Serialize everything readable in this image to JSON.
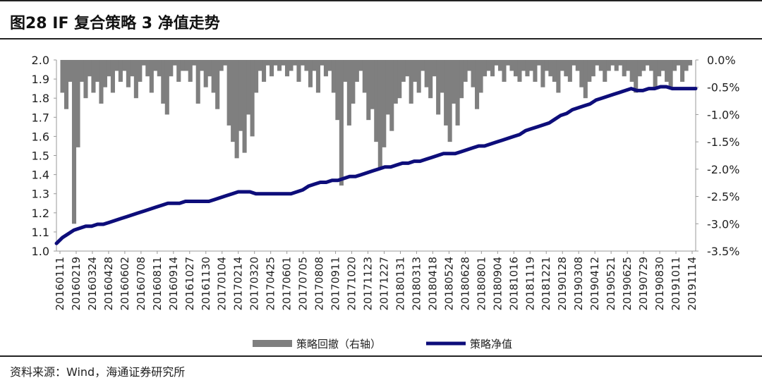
{
  "header": {
    "title": "图28 IF 复合策略 3 净值走势"
  },
  "footer": {
    "source": "资料来源：Wind，海通证券研究所"
  },
  "chart_data": {
    "type": "line",
    "title": "图28 IF 复合策略 3 净值走势",
    "x_ticks": [
      "20160111",
      "20160219",
      "20160324",
      "20160428",
      "20160602",
      "20160708",
      "20160811",
      "20160914",
      "20161027",
      "20161130",
      "20170104",
      "20170214",
      "20170320",
      "20170425",
      "20170601",
      "20170705",
      "20170808",
      "20170911",
      "20171020",
      "20171123",
      "20171227",
      "20180131",
      "20180313",
      "20180418",
      "20180524",
      "20180628",
      "20180801",
      "20180904",
      "20181016",
      "20181119",
      "20181221",
      "20190128",
      "20190308",
      "20190412",
      "20190521",
      "20190625",
      "20190729",
      "20190830",
      "20191011",
      "20191114"
    ],
    "y_left": {
      "ylim": [
        1.0,
        2.0
      ],
      "ticks": [
        "1.0",
        "1.1",
        "1.2",
        "1.3",
        "1.4",
        "1.5",
        "1.6",
        "1.7",
        "1.8",
        "1.9",
        "2.0"
      ]
    },
    "y_right": {
      "ylim": [
        -3.5,
        0.0
      ],
      "ticks": [
        "-3.5%",
        "-3.0%",
        "-2.5%",
        "-2.0%",
        "-1.5%",
        "-1.0%",
        "-0.5%",
        "0.0%"
      ]
    },
    "legend_position": "bottom",
    "series": [
      {
        "name": "策略回撤（右轴）",
        "type": "area",
        "axis": "right",
        "color": "#7f7f7f",
        "values": [
          0.0,
          -0.6,
          -0.9,
          -0.4,
          -3.0,
          -1.6,
          -0.4,
          -0.7,
          -0.3,
          -0.6,
          -0.4,
          -0.8,
          -0.5,
          -0.3,
          -0.6,
          -0.2,
          -0.4,
          -0.2,
          -0.5,
          -0.3,
          -0.7,
          -0.4,
          -0.1,
          -0.3,
          -0.6,
          -0.2,
          -0.3,
          -0.8,
          -1.0,
          -0.3,
          -0.1,
          -0.4,
          -0.2,
          -0.2,
          -0.4,
          -0.1,
          -0.8,
          -0.2,
          -0.5,
          -0.3,
          -0.6,
          -0.9,
          -0.2,
          -0.1,
          -1.2,
          -1.5,
          -1.8,
          -1.3,
          -1.7,
          -1.0,
          -1.4,
          -0.6,
          -0.2,
          -0.4,
          -0.1,
          -0.3,
          -0.1,
          -0.2,
          -0.1,
          -0.3,
          -0.2,
          -0.1,
          -0.4,
          -0.1,
          -0.2,
          -0.5,
          -0.2,
          -0.6,
          -0.1,
          -0.3,
          -0.2,
          -0.6,
          -1.1,
          -2.3,
          -0.4,
          -1.2,
          -0.8,
          -0.4,
          -0.2,
          -0.6,
          -1.1,
          -0.9,
          -1.5,
          -2.0,
          -1.6,
          -1.0,
          -1.3,
          -0.8,
          -0.7,
          -0.4,
          -0.3,
          -0.8,
          -0.4,
          -0.6,
          -0.2,
          -0.5,
          -0.7,
          -0.3,
          -1.0,
          -0.6,
          -1.2,
          -1.5,
          -0.8,
          -1.2,
          -0.7,
          -0.4,
          -0.2,
          -0.5,
          -0.9,
          -0.6,
          -0.3,
          -0.2,
          -0.3,
          -0.1,
          -0.2,
          -0.4,
          -0.1,
          -0.2,
          -0.3,
          -0.4,
          -0.2,
          -0.3,
          -0.2,
          -0.4,
          -0.1,
          -0.5,
          -0.2,
          -0.3,
          -0.4,
          -0.6,
          -0.2,
          -0.3,
          -0.4,
          -0.1,
          -0.2,
          -0.5,
          -0.7,
          -0.4,
          -0.3,
          -0.1,
          -0.2,
          -0.4,
          -0.2,
          -0.1,
          -0.2,
          -0.1,
          -0.3,
          -0.2,
          -0.4,
          -0.6,
          -0.3,
          -0.2,
          -0.1,
          -0.2,
          -0.5,
          -0.3,
          -0.2,
          -0.4,
          -0.5,
          -0.2,
          -0.1,
          -0.4,
          -0.2,
          -0.1,
          0.0
        ]
      },
      {
        "name": "策略净值",
        "type": "line",
        "axis": "left",
        "color": "#0d0d7a",
        "values": [
          1.04,
          1.07,
          1.09,
          1.11,
          1.12,
          1.13,
          1.13,
          1.14,
          1.14,
          1.15,
          1.16,
          1.17,
          1.18,
          1.19,
          1.2,
          1.21,
          1.22,
          1.23,
          1.24,
          1.25,
          1.25,
          1.25,
          1.26,
          1.26,
          1.26,
          1.26,
          1.26,
          1.27,
          1.28,
          1.29,
          1.3,
          1.31,
          1.31,
          1.31,
          1.3,
          1.3,
          1.3,
          1.3,
          1.3,
          1.3,
          1.3,
          1.31,
          1.32,
          1.34,
          1.35,
          1.36,
          1.36,
          1.37,
          1.37,
          1.38,
          1.39,
          1.39,
          1.4,
          1.41,
          1.42,
          1.43,
          1.44,
          1.44,
          1.45,
          1.46,
          1.46,
          1.47,
          1.47,
          1.48,
          1.49,
          1.5,
          1.51,
          1.51,
          1.51,
          1.52,
          1.53,
          1.54,
          1.55,
          1.55,
          1.56,
          1.57,
          1.58,
          1.59,
          1.6,
          1.61,
          1.63,
          1.64,
          1.65,
          1.66,
          1.67,
          1.69,
          1.71,
          1.72,
          1.74,
          1.75,
          1.76,
          1.77,
          1.79,
          1.8,
          1.81,
          1.82,
          1.83,
          1.84,
          1.85,
          1.84,
          1.84,
          1.85,
          1.85,
          1.86,
          1.86,
          1.85,
          1.85,
          1.85,
          1.85,
          1.85
        ]
      }
    ]
  }
}
